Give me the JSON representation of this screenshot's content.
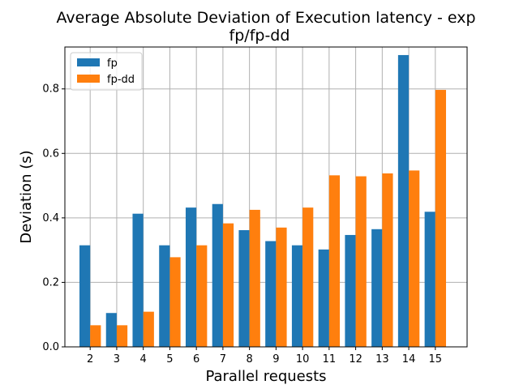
{
  "chart_data": {
    "type": "bar",
    "title_line1": "Average Absolute Deviation of Execution latency - exp",
    "title_line2": "fp/fp-dd",
    "xlabel": "Parallel requests",
    "ylabel": "Deviation (s)",
    "categories": [
      "2",
      "3",
      "4",
      "5",
      "6",
      "7",
      "8",
      "9",
      "10",
      "11",
      "12",
      "13",
      "14",
      "15"
    ],
    "series": [
      {
        "name": "fp",
        "color": "#1f77b4",
        "values": [
          0.315,
          0.105,
          0.413,
          0.315,
          0.432,
          0.443,
          0.362,
          0.328,
          0.315,
          0.302,
          0.347,
          0.365,
          0.905,
          0.419
        ]
      },
      {
        "name": "fp-dd",
        "color": "#ff7f0e",
        "values": [
          0.067,
          0.067,
          0.109,
          0.278,
          0.315,
          0.383,
          0.425,
          0.37,
          0.432,
          0.532,
          0.529,
          0.538,
          0.547,
          0.797
        ]
      }
    ],
    "ylim": [
      0,
      0.93
    ],
    "yticks": [
      "0.0",
      "0.2",
      "0.4",
      "0.6",
      "0.8"
    ],
    "grid": true,
    "legend": "top-left"
  }
}
